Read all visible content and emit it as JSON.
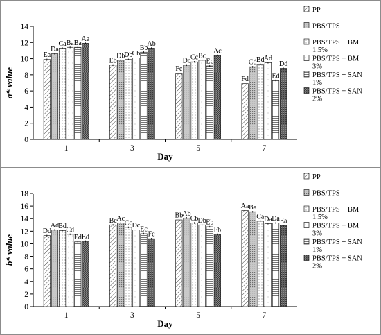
{
  "chart_data": [
    {
      "type": "bar",
      "ylabel": "a* value",
      "xlabel": "Day",
      "ylim": [
        0,
        14
      ],
      "yticks": [
        0,
        2,
        4,
        6,
        8,
        10,
        12,
        14
      ],
      "categories": [
        "1",
        "3",
        "5",
        "7"
      ],
      "series": [
        {
          "name": "PP",
          "values": [
            9.9,
            9.2,
            8.2,
            6.9
          ],
          "labels": [
            "Ea",
            "Eb",
            "Fc",
            "Fd"
          ]
        },
        {
          "name": "PBS/TPS",
          "values": [
            10.6,
            9.8,
            9.2,
            9.0
          ],
          "labels": [
            "Da",
            "Db",
            "Dc",
            "Cd"
          ]
        },
        {
          "name": "PBS/TPS + BM 1.5%",
          "values": [
            11.3,
            9.9,
            9.6,
            9.3
          ],
          "labels": [
            "Ca",
            "Db",
            "Cc",
            "Bd"
          ]
        },
        {
          "name": "PBS/TPS + BM 3%",
          "values": [
            11.4,
            10.1,
            9.8,
            9.5
          ],
          "labels": [
            "Ba",
            "Cb",
            "Bc",
            "Ad"
          ]
        },
        {
          "name": "PBS/TPS + SAN 1%",
          "values": [
            11.4,
            10.8,
            9.1,
            7.3
          ],
          "labels": [
            "Ba",
            "Bb",
            "Ec",
            "Ed"
          ]
        },
        {
          "name": "PBS/TPS + SAN 2%",
          "values": [
            11.9,
            11.3,
            10.4,
            8.8
          ],
          "labels": [
            "Aa",
            "Ab",
            "Ac",
            "Dd"
          ]
        }
      ],
      "legend_position": "right"
    },
    {
      "type": "bar",
      "ylabel": "b* value",
      "xlabel": "Day",
      "ylim": [
        0,
        18
      ],
      "yticks": [
        0,
        2,
        4,
        6,
        8,
        10,
        12,
        14,
        16,
        18
      ],
      "categories": [
        "1",
        "3",
        "5",
        "7"
      ],
      "series": [
        {
          "name": "PP",
          "values": [
            11.3,
            13.0,
            13.8,
            15.3
          ],
          "labels": [
            "Dd",
            "Bc",
            "Bb",
            "Aa"
          ]
        },
        {
          "name": "PBS/TPS",
          "values": [
            12.2,
            13.3,
            14.1,
            15.1
          ],
          "labels": [
            "Ad",
            "Ac",
            "Ab",
            "Ba"
          ]
        },
        {
          "name": "PBS/TPS + BM 1.5%",
          "values": [
            12.1,
            12.6,
            13.3,
            13.6
          ],
          "labels": [
            "Bd",
            "Cc",
            "Cb",
            "Ca"
          ]
        },
        {
          "name": "PBS/TPS + BM 3%",
          "values": [
            11.5,
            12.2,
            13.0,
            13.2
          ],
          "labels": [
            "Cd",
            "Dc",
            "Db",
            "Da"
          ]
        },
        {
          "name": "PBS/TPS + SAN 1%",
          "values": [
            10.3,
            11.6,
            12.7,
            13.3
          ],
          "labels": [
            "Ed",
            "Ec",
            "Eb",
            "Da"
          ]
        },
        {
          "name": "PBS/TPS + SAN 2%",
          "values": [
            10.4,
            10.8,
            11.5,
            12.9
          ],
          "labels": [
            "Ed",
            "Fc",
            "Fb",
            "Ea"
          ]
        }
      ],
      "legend_position": "right"
    }
  ],
  "legend_label_lines": [
    [
      "PP"
    ],
    [
      "PBS/TPS"
    ],
    [
      "PBS/TPS + BM",
      "1.5%"
    ],
    [
      "PBS/TPS + BM",
      "3%"
    ],
    [
      "PBS/TPS + SAN",
      "1%"
    ],
    [
      "PBS/TPS + SAN",
      "2%"
    ]
  ],
  "pattern_names": [
    "diagonal-hatch",
    "dotted-grey",
    "small-dots",
    "sparse-dots",
    "horizontal-lines",
    "dense-crosshatch"
  ]
}
